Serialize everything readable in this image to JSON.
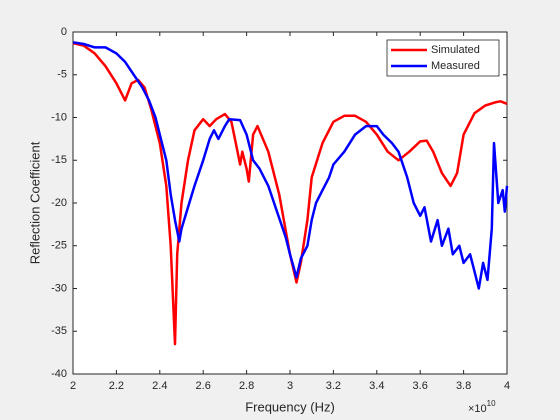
{
  "chart_data": {
    "type": "line",
    "x_label": "Frequency (Hz)",
    "y_label": "Reflection Coefficient",
    "x_multiplier": {
      "base": "×10",
      "exponent": "10"
    },
    "xlim": [
      2,
      4
    ],
    "xticks": [
      2,
      2.2,
      2.4,
      2.6,
      2.8,
      3,
      3.2,
      3.4,
      3.6,
      3.8,
      4
    ],
    "ylim": [
      -40,
      0
    ],
    "yticks": [
      0,
      -5,
      -10,
      -15,
      -20,
      -25,
      -30,
      -35,
      -40
    ],
    "legend": "top-right",
    "series": [
      {
        "name": "Simulated",
        "color": "#ff0000",
        "x": [
          2.0,
          2.05,
          2.1,
          2.15,
          2.2,
          2.24,
          2.27,
          2.3,
          2.33,
          2.36,
          2.4,
          2.43,
          2.45,
          2.47,
          2.48,
          2.5,
          2.53,
          2.56,
          2.6,
          2.63,
          2.66,
          2.7,
          2.73,
          2.75,
          2.77,
          2.78,
          2.8,
          2.81,
          2.83,
          2.85,
          2.9,
          2.95,
          3.0,
          3.03,
          3.05,
          3.08,
          3.1,
          3.15,
          3.2,
          3.25,
          3.3,
          3.35,
          3.4,
          3.45,
          3.5,
          3.55,
          3.6,
          3.63,
          3.66,
          3.7,
          3.74,
          3.77,
          3.8,
          3.85,
          3.9,
          3.95,
          3.97,
          4.0
        ],
        "values": [
          -1.3,
          -1.6,
          -2.5,
          -4,
          -6,
          -8,
          -6,
          -5.6,
          -6.5,
          -9,
          -13,
          -18,
          -25,
          -36.5,
          -26,
          -20,
          -15,
          -11.5,
          -10.2,
          -11,
          -10.2,
          -9.6,
          -10.5,
          -13,
          -15.5,
          -14,
          -16,
          -17.5,
          -12,
          -11,
          -14,
          -19,
          -26,
          -29.3,
          -27,
          -22,
          -17,
          -13,
          -10.5,
          -9.8,
          -9.8,
          -10.5,
          -12,
          -14,
          -15,
          -14,
          -12.8,
          -12.7,
          -14,
          -16.5,
          -18,
          -16.5,
          -12,
          -9.5,
          -8.6,
          -8.2,
          -8.1,
          -8.4
        ]
      },
      {
        "name": "Measured",
        "color": "#0000ff",
        "x": [
          2.0,
          2.05,
          2.1,
          2.15,
          2.2,
          2.24,
          2.28,
          2.32,
          2.35,
          2.38,
          2.4,
          2.43,
          2.45,
          2.47,
          2.49,
          2.5,
          2.53,
          2.56,
          2.6,
          2.63,
          2.65,
          2.67,
          2.7,
          2.72,
          2.77,
          2.8,
          2.83,
          2.86,
          2.9,
          2.94,
          2.98,
          3.0,
          3.03,
          3.05,
          3.08,
          3.1,
          3.12,
          3.15,
          3.18,
          3.2,
          3.25,
          3.3,
          3.35,
          3.4,
          3.43,
          3.47,
          3.5,
          3.54,
          3.57,
          3.6,
          3.62,
          3.65,
          3.68,
          3.7,
          3.73,
          3.75,
          3.78,
          3.8,
          3.83,
          3.85,
          3.87,
          3.89,
          3.91,
          3.93,
          3.94,
          3.96,
          3.98,
          3.99,
          4.0
        ],
        "values": [
          -1.2,
          -1.4,
          -1.8,
          -1.8,
          -2.5,
          -3.5,
          -5,
          -6.5,
          -8,
          -10,
          -12,
          -15,
          -19,
          -22,
          -24.5,
          -23,
          -20.5,
          -18,
          -15,
          -12.5,
          -11.5,
          -12.5,
          -11,
          -10.2,
          -10.3,
          -12,
          -15,
          -16,
          -18,
          -21,
          -24,
          -26,
          -28.7,
          -26.5,
          -25,
          -22,
          -20,
          -18.5,
          -17,
          -15.5,
          -14,
          -12,
          -11,
          -11,
          -12,
          -13,
          -14,
          -17,
          -20,
          -21.5,
          -20.5,
          -24.5,
          -22,
          -25,
          -23,
          -26,
          -25,
          -27,
          -26,
          -28,
          -30,
          -27,
          -29,
          -23,
          -13,
          -20,
          -18.5,
          -21,
          -18
        ]
      }
    ]
  }
}
